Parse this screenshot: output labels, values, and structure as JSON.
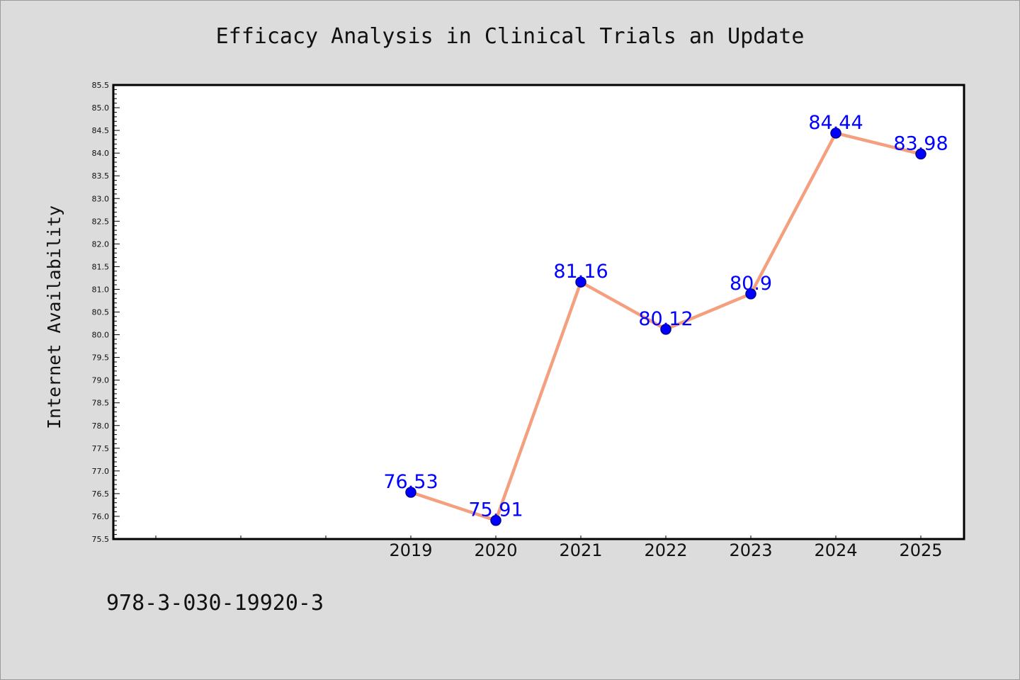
{
  "chart_data": {
    "type": "line",
    "title": "Efficacy Analysis in Clinical Trials an Update",
    "xlabel": "",
    "ylabel": "Internet Availability",
    "categories": [
      "2019",
      "2020",
      "2021",
      "2022",
      "2023",
      "2024",
      "2025"
    ],
    "x_slots": 10,
    "x_first_category_slot": 3,
    "series": [
      {
        "values": [
          76.53,
          75.91,
          81.16,
          80.12,
          80.9,
          84.44,
          83.98
        ],
        "data_labels": [
          "76.53",
          "75.91",
          "81.16",
          "80.12",
          "80.9",
          "84.44",
          "83.98"
        ]
      }
    ],
    "ylim": [
      75.5,
      85.5
    ],
    "y_major_step": 0.5,
    "y_minor_step": 0.1,
    "y_tick_labels": [
      "75.5",
      "76.0",
      "76.5",
      "77.0",
      "77.5",
      "78.0",
      "78.5",
      "79.0",
      "79.5",
      "80.0",
      "80.5",
      "81.0",
      "81.5",
      "82.0",
      "82.5",
      "83.0",
      "83.5",
      "84.0",
      "84.5",
      "85.0",
      "85.5"
    ],
    "grid": false,
    "legend": "none",
    "colors": {
      "line": "#f4a07f",
      "marker": "#0000ff",
      "marker_edge": "#00008b",
      "data_label": "#0000ff",
      "background": "#dcdcdc",
      "plot_area": "#ffffff"
    }
  },
  "footer": {
    "isbn": "978-3-030-19920-3"
  }
}
